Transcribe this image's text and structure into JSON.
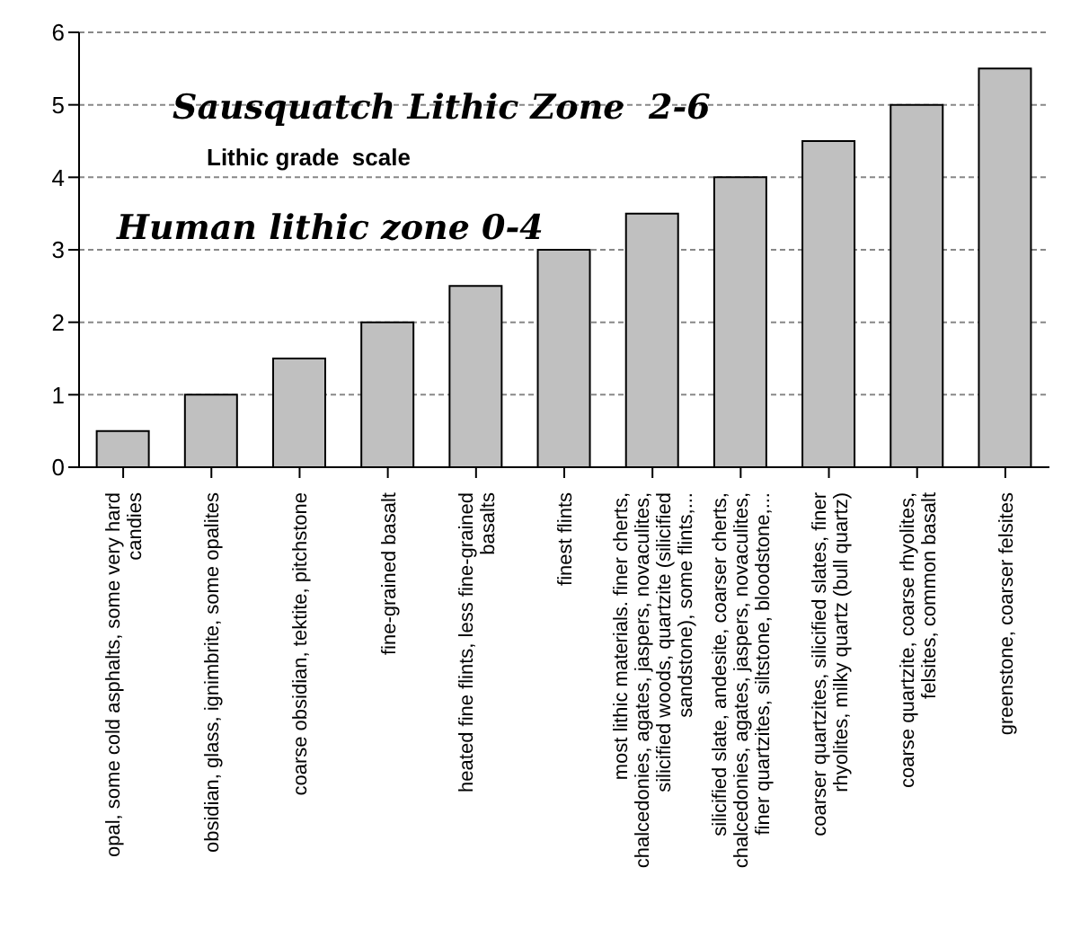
{
  "chart_data": {
    "type": "bar",
    "annotations": [
      "Sausquatch Lithic Zone  2-6",
      "Lithic grade  scale",
      "Human lithic zone 0-4"
    ],
    "categories": [
      "opal, some cold asphalts, some very hard candies",
      "obsidian, glass, ignimbrite, some opalites",
      "coarse obsidian, tektite, pitchstone",
      "fine-grained basalt",
      "heated fine flints, less fine-grained basalts",
      "finest flints",
      "most lithic materials. finer cherts, chalcedonies, agates, jaspers, novaculites, silicified woods, quartzite (silicified sandstone), some flints,...",
      "silicified slate, andesite, coarser cherts, chalcedonies, agates, jaspers, novaculites, finer quartzites, siltstone, bloodstone,...",
      "coarser quartzites, silicified slates, finer rhyolites, milky quartz (bull quartz)",
      "coarse quartzite, coarse rhyolites, felsites, common basalt",
      "greenstone, coarser felsites"
    ],
    "values": [
      0.5,
      1,
      1.5,
      2,
      2.5,
      3,
      3.5,
      4,
      4.5,
      5,
      5.5
    ],
    "color": "#c0c0c0",
    "ylim": [
      0,
      6
    ],
    "yticks": [
      0,
      1,
      2,
      3,
      4,
      5,
      6
    ],
    "grid": "y"
  }
}
